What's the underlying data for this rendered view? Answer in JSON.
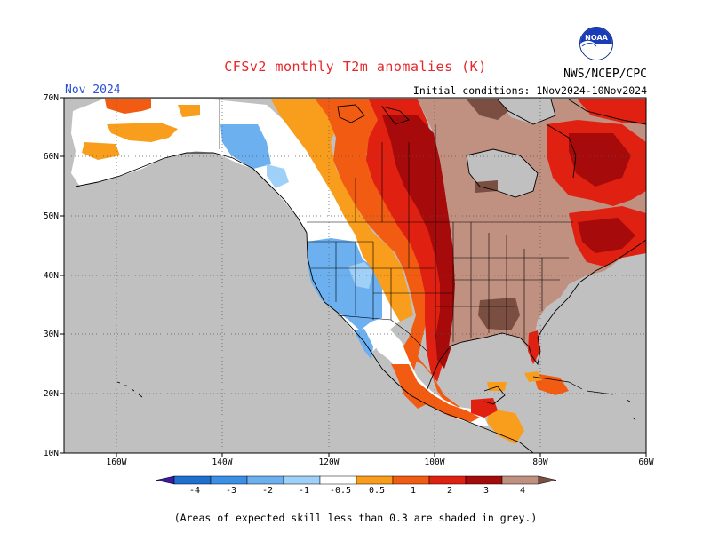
{
  "header": {
    "title": "CFSv2 monthly T2m anomalies (K)",
    "month": "Nov 2024",
    "agency": "NWS/NCEP/CPC",
    "initial_conditions": "Initial conditions: 1Nov2024-10Nov2024",
    "logo_text": "NOAA"
  },
  "map": {
    "lat_labels": [
      "70N",
      "60N",
      "50N",
      "40N",
      "30N",
      "20N",
      "10N"
    ],
    "lon_labels": [
      "160W",
      "140W",
      "120W",
      "100W",
      "80W",
      "60W"
    ]
  },
  "colorbar": {
    "labels": [
      "-4",
      "-3",
      "-2",
      "-1",
      "-0.5",
      "0.5",
      "1",
      "2",
      "3",
      "4"
    ],
    "colors": [
      "#3a1aa0",
      "#1f6fd0",
      "#3c8fe6",
      "#6db0f0",
      "#9fd0f8",
      "#ffffff",
      "#f99d1c",
      "#f25c12",
      "#e02010",
      "#a60a0a",
      "#c09080",
      "#7a4e40"
    ]
  },
  "footnote": "(Areas of expected skill less than 0.3 are shaded in grey.)"
}
